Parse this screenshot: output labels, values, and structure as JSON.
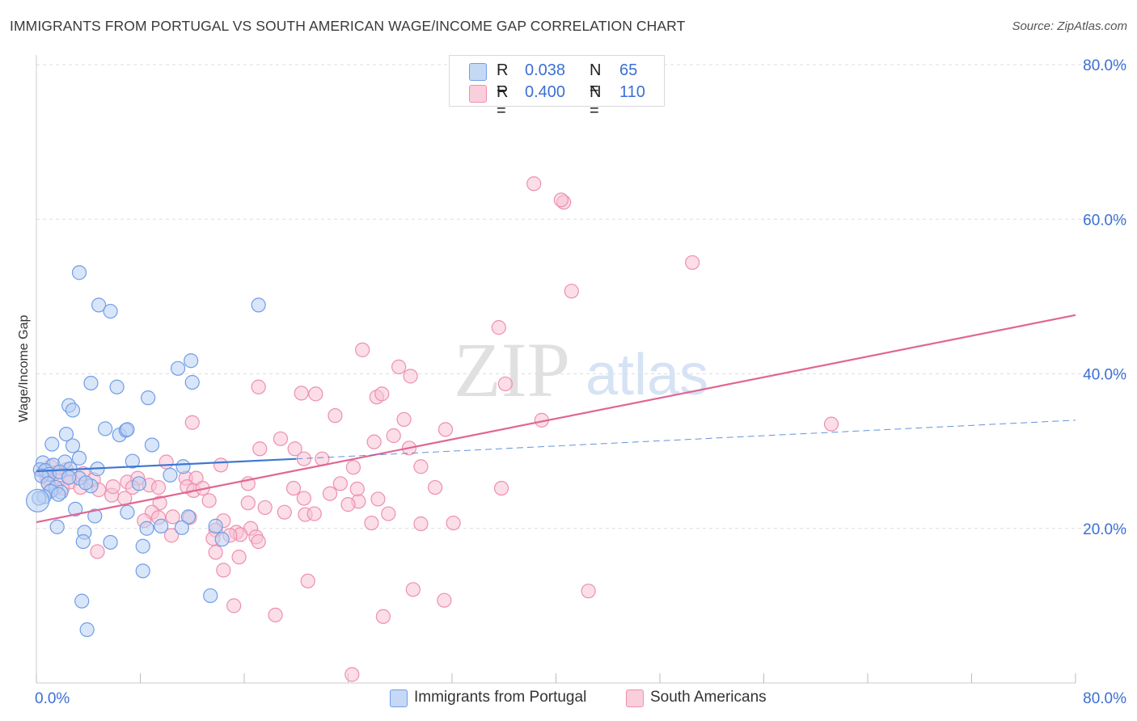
{
  "header": {
    "title": "IMMIGRANTS FROM PORTUGAL VS SOUTH AMERICAN WAGE/INCOME GAP CORRELATION CHART",
    "source": "Source: ZipAtlas.com"
  },
  "watermark": {
    "zip": "ZIP",
    "atlas": "atlas"
  },
  "legend": {
    "rows": [
      {
        "r_label": "R =",
        "r_value": "0.038",
        "n_label": "N =",
        "n_value": "65",
        "color": "#6f9ee8"
      },
      {
        "r_label": "R =",
        "r_value": "0.400",
        "n_label": "N =",
        "n_value": "110",
        "color": "#ee8fae"
      }
    ]
  },
  "colors": {
    "blue_fill": "#b9d0f2",
    "blue_stroke": "#6f9ee8",
    "blue_line": "#3d78d0",
    "pink_fill": "#f8c3d4",
    "pink_stroke": "#ee8fae",
    "pink_line": "#e06694",
    "axis_text": "#3b6fd4",
    "grid": "#dddddd"
  },
  "chart_data": {
    "type": "scatter",
    "title": "IMMIGRANTS FROM PORTUGAL VS SOUTH AMERICAN WAGE/INCOME GAP CORRELATION CHART",
    "xlabel": "",
    "ylabel": "Wage/Income Gap",
    "xlim": [
      0,
      80
    ],
    "ylim": [
      0,
      80
    ],
    "x_tick_labels": [
      "0.0%",
      "80.0%"
    ],
    "y_tick_labels": [
      "20.0%",
      "40.0%",
      "60.0%",
      "80.0%"
    ],
    "y_ticks": [
      20,
      40,
      60,
      80
    ],
    "series": [
      {
        "name": "Immigrants from Portugal",
        "color": "#6f9ee8",
        "trend": {
          "x": [
            0,
            20
          ],
          "y": [
            27.4,
            29.0
          ],
          "dash_to": [
            80,
            34.0
          ]
        },
        "points": [
          [
            3.3,
            53.1
          ],
          [
            4.8,
            48.9
          ],
          [
            5.7,
            48.1
          ],
          [
            17.1,
            48.9
          ],
          [
            11.9,
            41.7
          ],
          [
            10.9,
            40.7
          ],
          [
            12.0,
            38.9
          ],
          [
            4.2,
            38.8
          ],
          [
            6.2,
            38.3
          ],
          [
            8.6,
            36.9
          ],
          [
            2.5,
            35.9
          ],
          [
            2.8,
            35.3
          ],
          [
            5.3,
            32.9
          ],
          [
            6.4,
            32.1
          ],
          [
            6.9,
            32.7
          ],
          [
            7.0,
            32.8
          ],
          [
            2.3,
            32.2
          ],
          [
            1.2,
            30.9
          ],
          [
            2.8,
            30.7
          ],
          [
            8.9,
            30.8
          ],
          [
            3.3,
            29.1
          ],
          [
            0.5,
            28.5
          ],
          [
            1.3,
            28.2
          ],
          [
            2.2,
            28.6
          ],
          [
            2.6,
            27.7
          ],
          [
            7.4,
            28.7
          ],
          [
            11.3,
            28.0
          ],
          [
            4.7,
            27.7
          ],
          [
            0.3,
            27.6
          ],
          [
            0.7,
            27.5
          ],
          [
            1.0,
            27.0
          ],
          [
            1.8,
            27.3
          ],
          [
            0.4,
            26.8
          ],
          [
            3.3,
            26.5
          ],
          [
            2.5,
            26.6
          ],
          [
            10.3,
            26.9
          ],
          [
            0.9,
            25.8
          ],
          [
            1.5,
            25.3
          ],
          [
            1.9,
            24.7
          ],
          [
            1.1,
            24.8
          ],
          [
            0.6,
            24.1
          ],
          [
            1.7,
            24.4
          ],
          [
            4.2,
            25.5
          ],
          [
            3.8,
            25.9
          ],
          [
            7.9,
            25.8
          ],
          [
            0.2,
            23.9
          ],
          [
            3.0,
            22.5
          ],
          [
            7.0,
            22.1
          ],
          [
            9.6,
            20.3
          ],
          [
            11.7,
            21.5
          ],
          [
            4.5,
            21.6
          ],
          [
            1.6,
            20.2
          ],
          [
            8.5,
            20.0
          ],
          [
            3.7,
            19.5
          ],
          [
            11.2,
            20.1
          ],
          [
            13.8,
            20.3
          ],
          [
            3.6,
            18.3
          ],
          [
            5.7,
            18.2
          ],
          [
            14.3,
            18.6
          ],
          [
            8.2,
            17.7
          ],
          [
            8.2,
            14.5
          ],
          [
            13.4,
            11.3
          ],
          [
            3.5,
            10.6
          ],
          [
            3.9,
            6.9
          ],
          [
            0.1,
            23.6
          ]
        ]
      },
      {
        "name": "South Americans",
        "color": "#ee8fae",
        "trend": {
          "x": [
            0,
            80
          ],
          "y": [
            20.8,
            47.6
          ]
        },
        "points": [
          [
            38.3,
            64.6
          ],
          [
            40.6,
            62.2
          ],
          [
            40.4,
            62.5
          ],
          [
            50.5,
            54.4
          ],
          [
            41.2,
            50.7
          ],
          [
            35.6,
            46.0
          ],
          [
            25.1,
            43.1
          ],
          [
            27.9,
            40.9
          ],
          [
            28.8,
            39.7
          ],
          [
            36.1,
            38.7
          ],
          [
            17.1,
            38.3
          ],
          [
            20.4,
            37.5
          ],
          [
            21.5,
            37.4
          ],
          [
            26.2,
            37.0
          ],
          [
            26.6,
            37.4
          ],
          [
            23.0,
            34.6
          ],
          [
            28.3,
            34.1
          ],
          [
            12.0,
            33.7
          ],
          [
            31.5,
            32.8
          ],
          [
            38.9,
            34.0
          ],
          [
            61.2,
            33.5
          ],
          [
            18.8,
            31.6
          ],
          [
            19.9,
            30.3
          ],
          [
            17.2,
            30.3
          ],
          [
            26.0,
            31.2
          ],
          [
            28.7,
            30.4
          ],
          [
            27.5,
            32.0
          ],
          [
            20.6,
            29.0
          ],
          [
            22.0,
            29.0
          ],
          [
            10.0,
            28.6
          ],
          [
            14.2,
            28.2
          ],
          [
            1.1,
            28.0
          ],
          [
            24.4,
            27.9
          ],
          [
            29.6,
            28.0
          ],
          [
            2.3,
            27.6
          ],
          [
            0.6,
            27.4
          ],
          [
            1.5,
            27.2
          ],
          [
            3.6,
            27.1
          ],
          [
            0.8,
            26.5
          ],
          [
            1.6,
            26.2
          ],
          [
            2.6,
            26.0
          ],
          [
            4.4,
            26.3
          ],
          [
            7.0,
            26.0
          ],
          [
            7.8,
            26.5
          ],
          [
            11.5,
            26.5
          ],
          [
            12.3,
            26.5
          ],
          [
            16.3,
            25.8
          ],
          [
            19.8,
            25.2
          ],
          [
            23.4,
            25.8
          ],
          [
            2.0,
            25.2
          ],
          [
            3.4,
            25.3
          ],
          [
            4.8,
            25.0
          ],
          [
            5.8,
            24.3
          ],
          [
            7.4,
            25.3
          ],
          [
            8.7,
            25.6
          ],
          [
            9.4,
            25.3
          ],
          [
            11.6,
            25.4
          ],
          [
            12.1,
            24.9
          ],
          [
            12.8,
            25.2
          ],
          [
            20.6,
            23.9
          ],
          [
            22.6,
            24.5
          ],
          [
            24.8,
            23.5
          ],
          [
            24.7,
            25.1
          ],
          [
            6.8,
            23.9
          ],
          [
            9.5,
            23.3
          ],
          [
            13.3,
            23.6
          ],
          [
            16.3,
            23.3
          ],
          [
            17.6,
            22.7
          ],
          [
            19.1,
            22.1
          ],
          [
            20.7,
            21.8
          ],
          [
            21.4,
            21.9
          ],
          [
            24.0,
            23.1
          ],
          [
            26.3,
            23.8
          ],
          [
            30.7,
            25.3
          ],
          [
            35.8,
            25.2
          ],
          [
            27.1,
            21.9
          ],
          [
            8.9,
            22.1
          ],
          [
            10.5,
            21.5
          ],
          [
            11.8,
            21.4
          ],
          [
            14.4,
            21.0
          ],
          [
            9.4,
            21.4
          ],
          [
            8.3,
            21.0
          ],
          [
            16.5,
            20.0
          ],
          [
            25.8,
            20.7
          ],
          [
            29.6,
            20.6
          ],
          [
            32.1,
            20.7
          ],
          [
            13.8,
            19.8
          ],
          [
            15.4,
            19.5
          ],
          [
            13.6,
            18.7
          ],
          [
            16.9,
            18.9
          ],
          [
            15.7,
            19.2
          ],
          [
            14.9,
            19.1
          ],
          [
            17.1,
            18.3
          ],
          [
            10.4,
            19.1
          ],
          [
            4.7,
            17.0
          ],
          [
            13.8,
            16.9
          ],
          [
            15.6,
            16.3
          ],
          [
            14.4,
            14.6
          ],
          [
            20.9,
            13.2
          ],
          [
            29.0,
            12.1
          ],
          [
            42.5,
            11.9
          ],
          [
            31.4,
            10.7
          ],
          [
            15.2,
            10.0
          ],
          [
            18.4,
            8.8
          ],
          [
            26.7,
            8.6
          ],
          [
            24.3,
            1.1
          ],
          [
            2.5,
            26.6
          ],
          [
            0.9,
            25.9
          ],
          [
            5.9,
            25.4
          ],
          [
            1.2,
            25.0
          ]
        ]
      }
    ]
  },
  "bottom_legend": [
    {
      "label": "Immigrants from Portugal"
    },
    {
      "label": "South Americans"
    }
  ]
}
